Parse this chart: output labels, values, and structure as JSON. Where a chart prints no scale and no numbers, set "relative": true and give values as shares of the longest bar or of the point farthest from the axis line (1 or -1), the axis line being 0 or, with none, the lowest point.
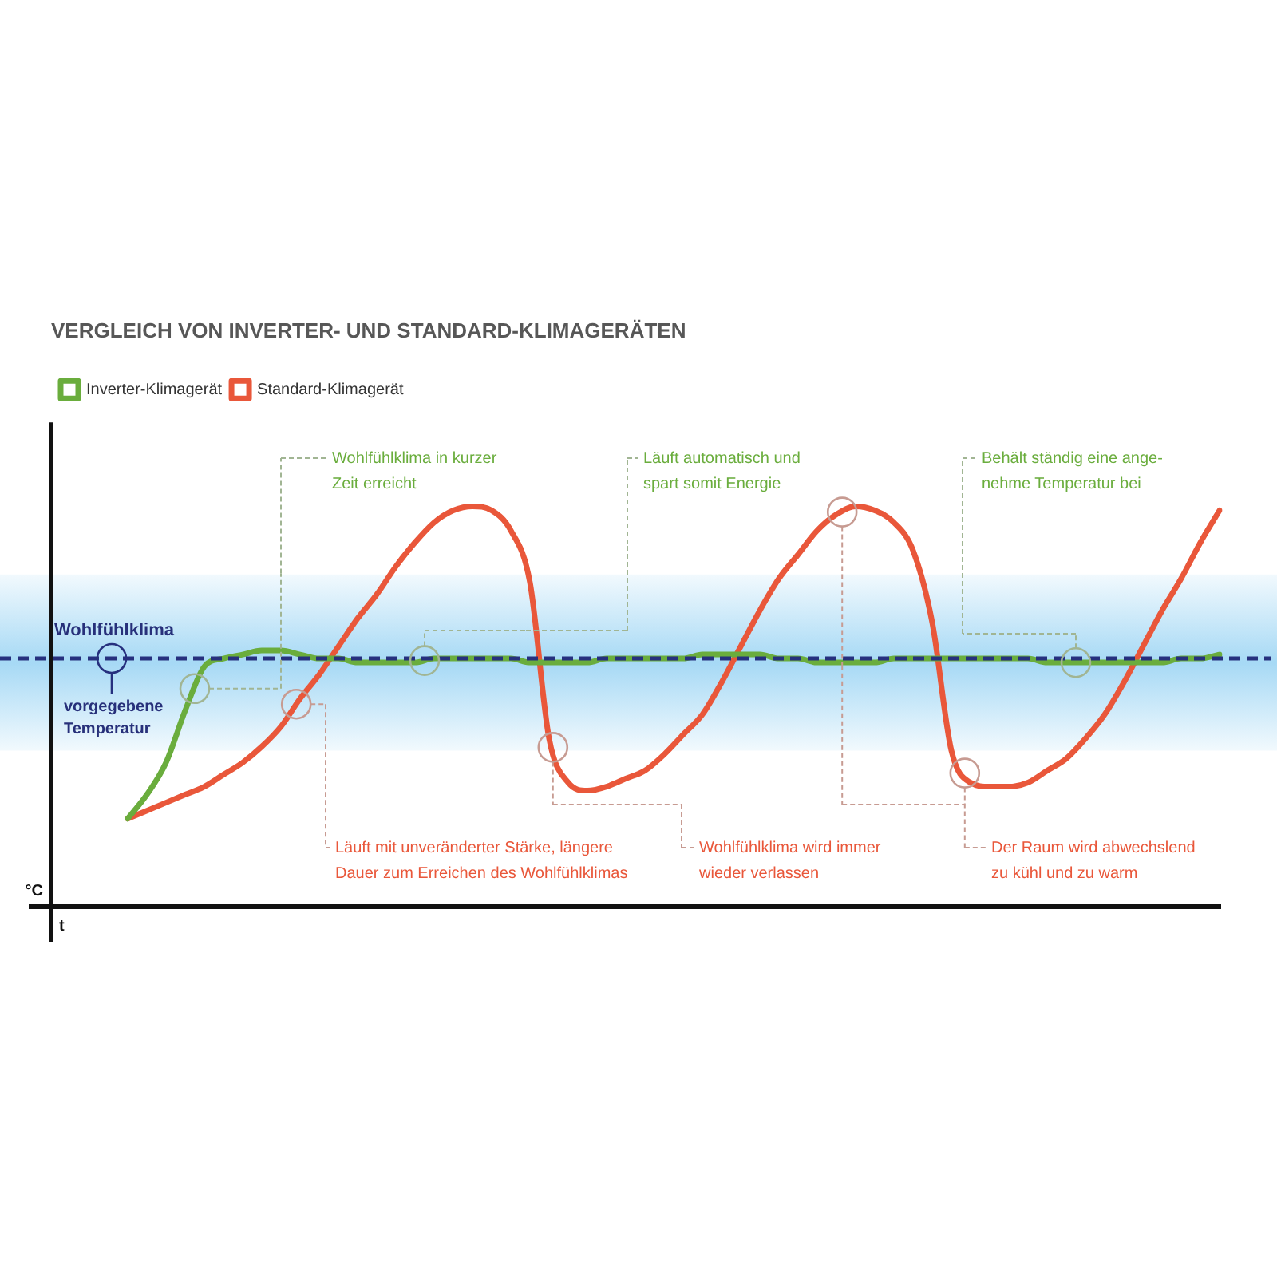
{
  "chart_data": {
    "type": "line",
    "title": "VERGLEICH VON INVERTER- UND STANDARD-KLIMAGERÄTEN",
    "xlabel": "t",
    "ylabel": "°C",
    "relative": true,
    "legend": "top left",
    "marker": "none",
    "categories": [
      null,
      null,
      null,
      null,
      null,
      null,
      null,
      null,
      null,
      null,
      null,
      null,
      null,
      null,
      null,
      null,
      null,
      null,
      null,
      null,
      null,
      null,
      null,
      null,
      null,
      null,
      null,
      null,
      null,
      null,
      null,
      null,
      null,
      null,
      null,
      null,
      null,
      null,
      null,
      null,
      null,
      null,
      null,
      null,
      null,
      null,
      null,
      null,
      null,
      null,
      null,
      null,
      null,
      null,
      null,
      null,
      null,
      null,
      null,
      null,
      null,
      null
    ],
    "series": [
      {
        "name": "Inverter-Klimagerät",
        "color": "#6aad3d",
        "values": [
          null,
          null,
          null,
          null,
          0.22,
          0.28,
          0.36,
          0.49,
          0.6,
          0.62,
          0.63,
          0.64,
          0.64,
          0.63,
          0.62,
          0.62,
          0.61,
          0.61,
          0.61,
          0.61,
          0.62,
          0.62,
          0.62,
          0.62,
          0.62,
          0.61,
          0.61,
          0.61,
          0.61,
          0.62,
          0.62,
          0.62,
          0.62,
          0.62,
          0.63,
          0.63,
          0.63,
          0.63,
          0.62,
          0.62,
          0.61,
          0.61,
          0.61,
          0.61,
          0.62,
          0.62,
          0.62,
          0.62,
          0.62,
          0.62,
          0.62,
          0.62,
          0.61,
          0.61,
          0.61,
          0.61,
          0.61,
          0.61,
          0.61,
          0.62,
          0.62,
          0.63
        ]
      },
      {
        "name": "Standard-Klimagerät",
        "color": "#e9573a",
        "values": [
          null,
          null,
          null,
          null,
          0.22,
          0.24,
          0.26,
          0.28,
          0.3,
          0.33,
          0.36,
          0.4,
          0.45,
          0.52,
          0.58,
          0.65,
          0.72,
          0.78,
          0.85,
          0.91,
          0.96,
          0.99,
          1.0,
          0.99,
          0.94,
          0.81,
          0.42,
          0.31,
          0.29,
          0.3,
          0.32,
          0.34,
          0.38,
          0.43,
          0.48,
          0.56,
          0.65,
          0.74,
          0.82,
          0.88,
          0.94,
          0.98,
          1.0,
          0.99,
          0.96,
          0.89,
          0.71,
          0.39,
          0.31,
          0.3,
          0.3,
          0.31,
          0.34,
          0.37,
          0.42,
          0.48,
          0.56,
          0.65,
          0.74,
          0.82,
          0.91,
          0.99
        ]
      }
    ],
    "ref_lines": [
      {
        "axis": "y",
        "value": 0.62,
        "label": "vorgegebene\nTemperatur",
        "color": "#26307e",
        "line_style": "dashed"
      }
    ],
    "bands": [
      {
        "axis": "y",
        "from": 0.39,
        "to": 0.83,
        "label": "Wohlfühlklima",
        "color": "#a6d9f5"
      }
    ],
    "annotations": [
      "Wohlfühlklima in kurzer\nZeit erreicht",
      "Läuft mit unveränderter Stärke, längere\nDauer zum Erreichen des Wohlfühlklimas",
      "Läuft automatisch und\nspart somit Energie",
      "Wohlfühlklima wird immer\nwieder verlassen",
      "Der Raum wird abwechslend\nzu kühl und zu warm",
      "Behält ständig eine ange-\nnehme Temperatur bei"
    ]
  }
}
